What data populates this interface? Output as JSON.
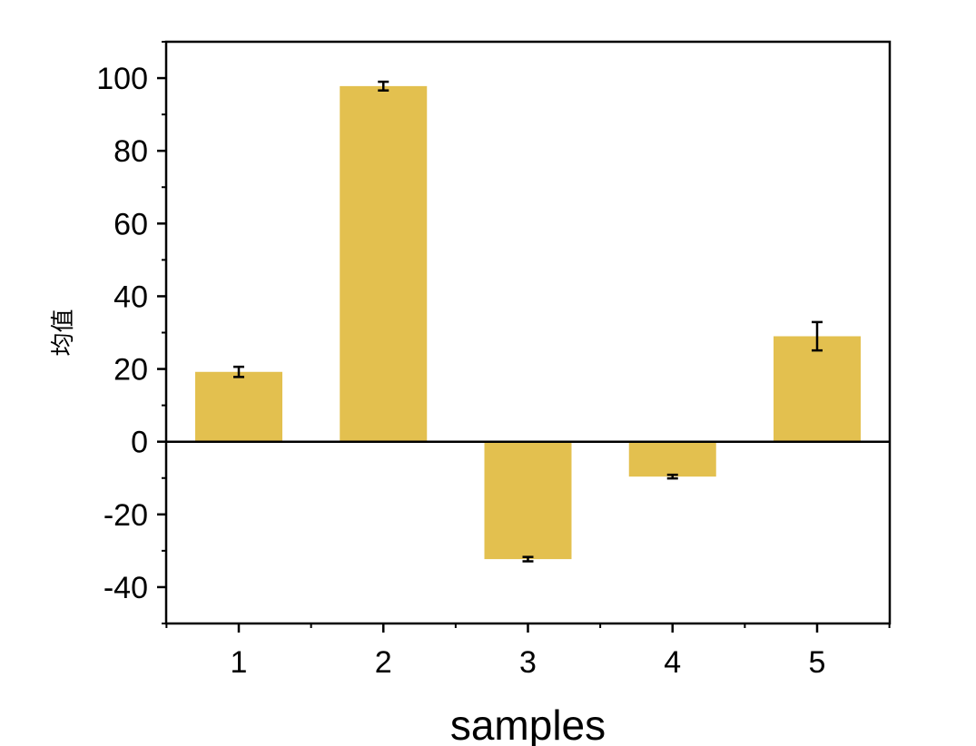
{
  "chart_data": {
    "type": "bar",
    "categories": [
      "1",
      "2",
      "3",
      "4",
      "5"
    ],
    "values": [
      19.2,
      97.8,
      -32.3,
      -9.6,
      29.0
    ],
    "errors": [
      1.4,
      1.2,
      0.6,
      0.5,
      3.9
    ],
    "xlabel": "samples",
    "ylabel": "均值",
    "ylim": [
      -50,
      110
    ],
    "yticks": [
      -40,
      -20,
      0,
      20,
      40,
      60,
      80,
      100
    ],
    "ytick_labels": [
      "-40",
      "-20",
      "0",
      "20",
      "40",
      "60",
      "80",
      "100"
    ],
    "grid": false,
    "legend": "none",
    "bar_color": "#e3c04f",
    "error_color": "#000000",
    "zero_line": true
  }
}
